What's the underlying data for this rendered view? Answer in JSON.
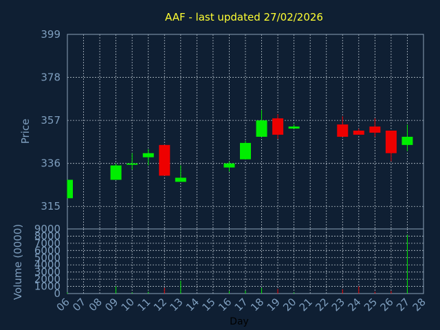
{
  "chart_data": [
    {
      "type": "candlestick",
      "title": "AAF - last updated 27/02/2026",
      "ylabel": "Price",
      "ylim": [
        304,
        399
      ],
      "yticks": [
        315,
        336,
        357,
        378,
        399
      ],
      "x_tick_labels": [
        "06",
        "07",
        "08",
        "09",
        "10",
        "11",
        "12",
        "13",
        "14",
        "15",
        "16",
        "17",
        "18",
        "19",
        "20",
        "21",
        "22",
        "23",
        "24",
        "25",
        "26",
        "27",
        "28"
      ],
      "grid": true,
      "colors": {
        "up": "#00ee00",
        "down": "#ee0000"
      },
      "candles": [
        {
          "day": "06",
          "open": 319,
          "high": 328,
          "low": 319,
          "close": 328
        },
        {
          "day": "09",
          "open": 328,
          "high": 336,
          "low": 328,
          "close": 335
        },
        {
          "day": "10",
          "open": 336,
          "high": 341,
          "low": 333,
          "close": 336
        },
        {
          "day": "11",
          "open": 339,
          "high": 343,
          "low": 335,
          "close": 341
        },
        {
          "day": "12",
          "open": 345,
          "high": 345,
          "low": 330,
          "close": 330
        },
        {
          "day": "13",
          "open": 327,
          "high": 335,
          "low": 327,
          "close": 329
        },
        {
          "day": "16",
          "open": 334,
          "high": 337,
          "low": 332,
          "close": 336
        },
        {
          "day": "17",
          "open": 338,
          "high": 347,
          "low": 338,
          "close": 346
        },
        {
          "day": "18",
          "open": 349,
          "high": 362,
          "low": 349,
          "close": 357
        },
        {
          "day": "19",
          "open": 358,
          "high": 360,
          "low": 348,
          "close": 350
        },
        {
          "day": "20",
          "open": 353,
          "high": 355,
          "low": 353,
          "close": 354
        },
        {
          "day": "23",
          "open": 355,
          "high": 359,
          "low": 349,
          "close": 349
        },
        {
          "day": "24",
          "open": 352,
          "high": 353,
          "low": 350,
          "close": 350
        },
        {
          "day": "25",
          "open": 354,
          "high": 358,
          "low": 349,
          "close": 351
        },
        {
          "day": "26",
          "open": 352,
          "high": 352,
          "low": 337,
          "close": 341
        },
        {
          "day": "27",
          "open": 345,
          "high": 355,
          "low": 342,
          "close": 349
        }
      ]
    },
    {
      "type": "bar",
      "ylabel": "Volume (0000)",
      "xlabel": "Day",
      "ylim": [
        0,
        9000
      ],
      "yticks": [
        0,
        1000,
        2000,
        3000,
        4000,
        5000,
        6000,
        7000,
        8000,
        9000
      ],
      "x_tick_labels": [
        "06",
        "07",
        "08",
        "09",
        "10",
        "11",
        "12",
        "13",
        "14",
        "15",
        "16",
        "17",
        "18",
        "19",
        "20",
        "21",
        "22",
        "23",
        "24",
        "25",
        "26",
        "27",
        "28"
      ],
      "grid": true,
      "bars": [
        {
          "day": "06",
          "value": 150,
          "direction": "up"
        },
        {
          "day": "09",
          "value": 1000,
          "direction": "up"
        },
        {
          "day": "10",
          "value": 150,
          "direction": "up"
        },
        {
          "day": "11",
          "value": 250,
          "direction": "up"
        },
        {
          "day": "12",
          "value": 800,
          "direction": "down"
        },
        {
          "day": "13",
          "value": 1800,
          "direction": "up"
        },
        {
          "day": "16",
          "value": 350,
          "direction": "up"
        },
        {
          "day": "17",
          "value": 400,
          "direction": "up"
        },
        {
          "day": "18",
          "value": 800,
          "direction": "up"
        },
        {
          "day": "19",
          "value": 650,
          "direction": "down"
        },
        {
          "day": "20",
          "value": 150,
          "direction": "up"
        },
        {
          "day": "23",
          "value": 600,
          "direction": "down"
        },
        {
          "day": "24",
          "value": 1000,
          "direction": "down"
        },
        {
          "day": "25",
          "value": 250,
          "direction": "down"
        },
        {
          "day": "26",
          "value": 350,
          "direction": "down"
        },
        {
          "day": "27",
          "value": 8200,
          "direction": "up"
        }
      ]
    }
  ]
}
